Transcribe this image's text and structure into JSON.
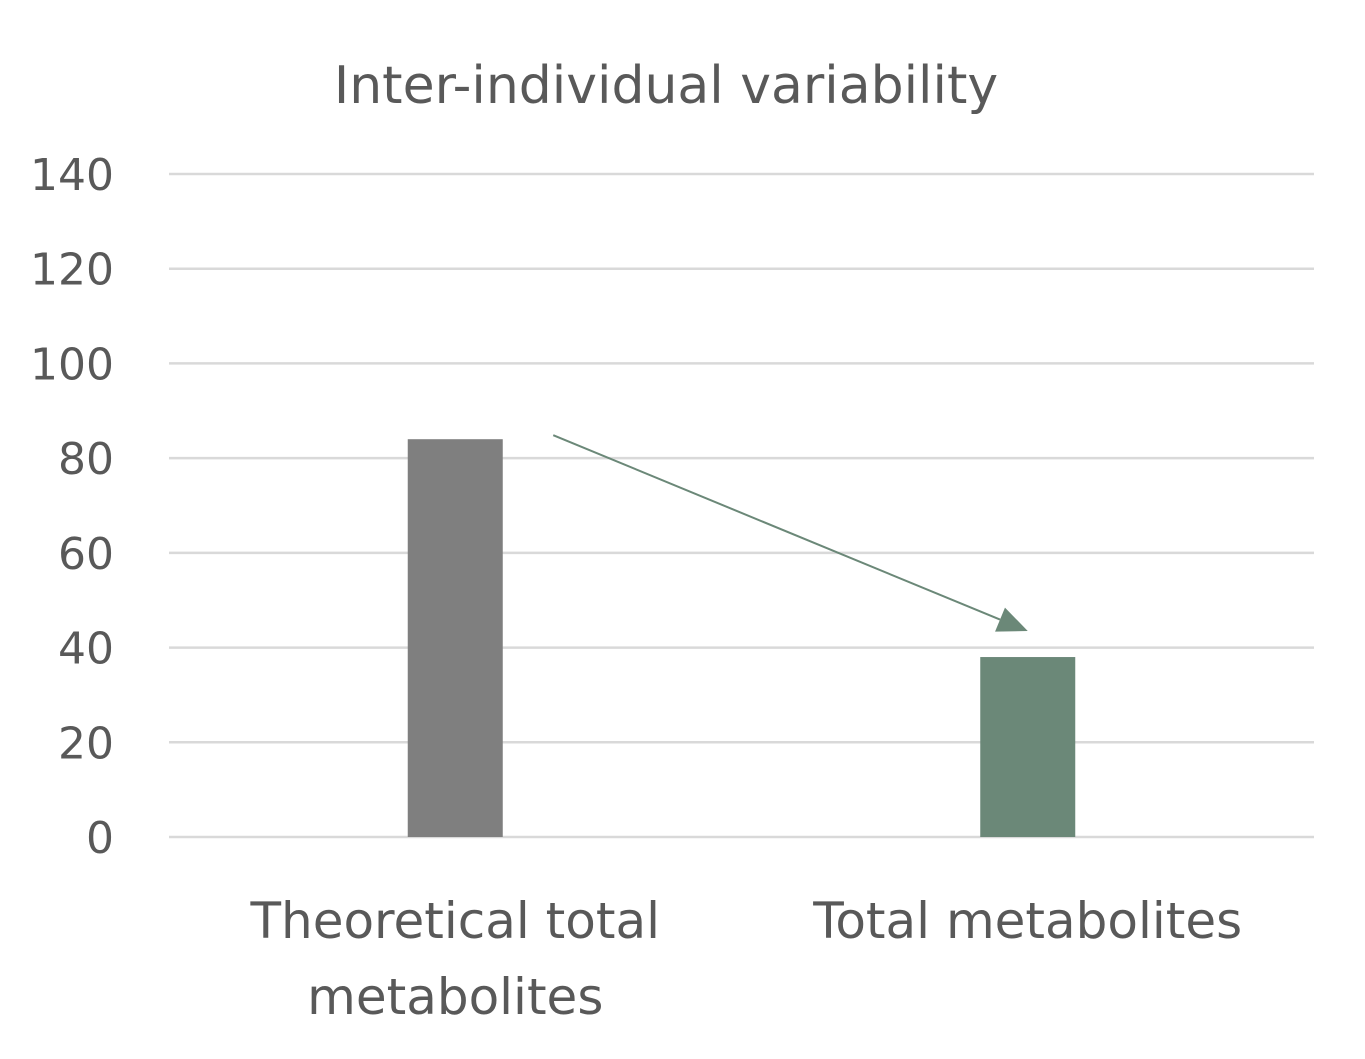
{
  "chart_data": {
    "type": "bar",
    "title": "Inter-individual variability",
    "categories": [
      "Theoretical total metabolites",
      "Total metabolites"
    ],
    "category_label_lines": [
      [
        "Theoretical total",
        "metabolites"
      ],
      [
        "Total metabolites"
      ]
    ],
    "values": [
      84,
      38
    ],
    "bar_colors": [
      "#7f7f7f",
      "#6b8878"
    ],
    "ylim": [
      0,
      140
    ],
    "yticks": [
      0,
      20,
      40,
      60,
      80,
      100,
      120,
      140
    ],
    "xlabel": "",
    "ylabel": "",
    "grid": true,
    "legend": "none",
    "annotations": [
      {
        "type": "arrow",
        "from_category": 0,
        "to_category": 1,
        "color": "#6b8878"
      }
    ]
  }
}
